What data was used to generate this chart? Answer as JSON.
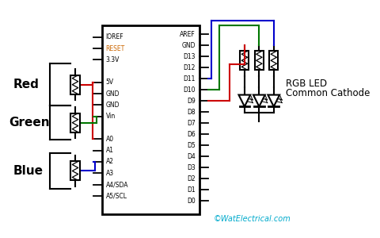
{
  "bg_color": "#ffffff",
  "left_pins": [
    "IOREF",
    "RESET",
    "3.3V",
    "",
    "5V",
    "GND",
    "GND",
    "Vin",
    "",
    "A0",
    "A1",
    "A2",
    "A3",
    "A4/SDA",
    "A5/SCL"
  ],
  "right_pins": [
    "AREF",
    "GND",
    "D13",
    "D12",
    "D11",
    "D10",
    "D9",
    "D8",
    "D7",
    "D6",
    "D5",
    "D4",
    "D3",
    "D2",
    "D1",
    "D0"
  ],
  "red_label": "Red",
  "green_label": "Green",
  "blue_label": "Blue",
  "rgb_label1": "RGB LED",
  "rgb_label2": "Common Cathode",
  "watermark": "©WatElectrical.com",
  "red_color": "#cc0000",
  "green_color": "#007700",
  "blue_color": "#0000cc",
  "black_color": "#000000",
  "cyan_color": "#00aacc",
  "reset_color": "#cc6600"
}
